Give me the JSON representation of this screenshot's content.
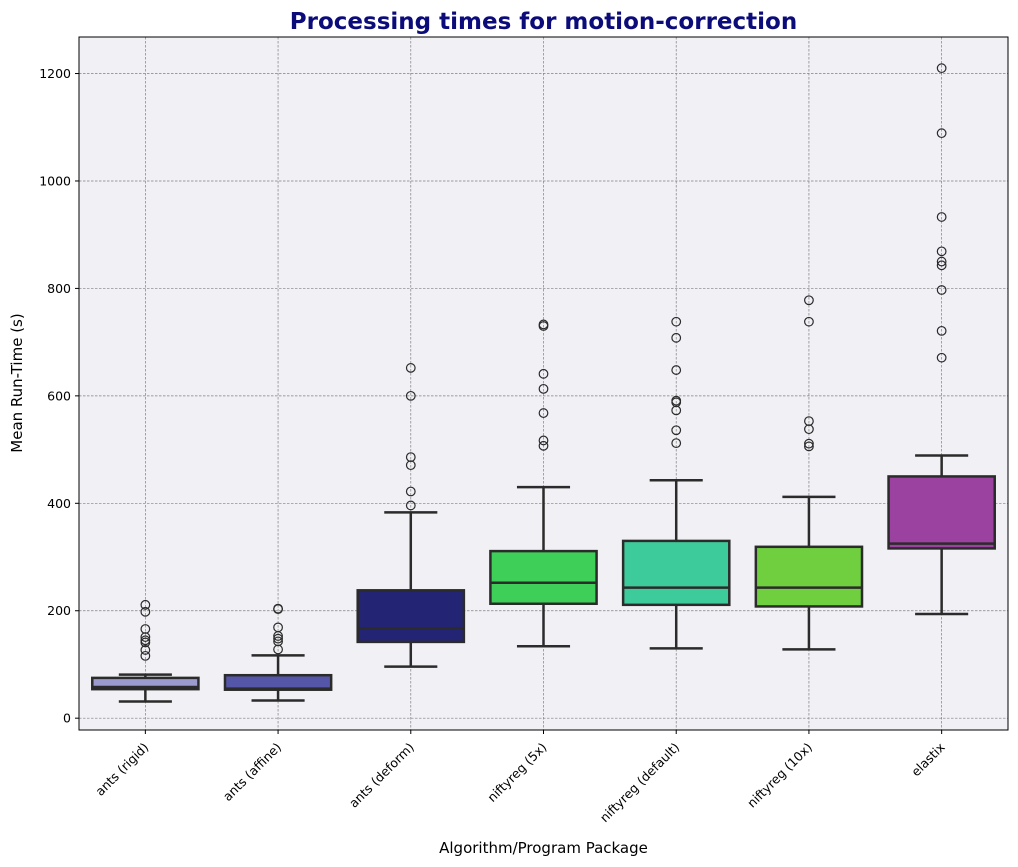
{
  "chart_data": {
    "type": "box",
    "title": "Processing times for motion-correction",
    "xlabel": "Algorithm/Program Package",
    "ylabel": "Mean Run-Time (s)",
    "ylim": [
      -22,
      1268
    ],
    "yticks": [
      0,
      200,
      400,
      600,
      800,
      1000,
      1200
    ],
    "grid": true,
    "colors": {
      "title": "#0b0b7a",
      "plot_background": "#f0f0f5",
      "grid": "#808080",
      "box_edge": "#2b2b2b"
    },
    "categories": [
      "ants (rigid)",
      "ants (affine)",
      "ants (deform)",
      "niftyreg (5x)",
      "niftyreg (default)",
      "niftyreg (10x)",
      "elastix"
    ],
    "boxes": [
      {
        "category": "ants (rigid)",
        "color": "#9b9bd0",
        "whisker_low": 31,
        "q1": 54,
        "median": 58,
        "q3": 75,
        "whisker_high": 81,
        "outliers": [
          211,
          198,
          166,
          151,
          145,
          141,
          127,
          116
        ]
      },
      {
        "category": "ants (affine)",
        "color": "#5656a8",
        "whisker_low": 33,
        "q1": 53,
        "median": 55,
        "q3": 80,
        "whisker_high": 117,
        "outliers": [
          204,
          203,
          169,
          153,
          148,
          143,
          128
        ]
      },
      {
        "category": "ants (deform)",
        "color": "#232473",
        "whisker_low": 96,
        "q1": 142,
        "median": 167,
        "q3": 238,
        "whisker_high": 383,
        "outliers": [
          652,
          600,
          486,
          471,
          422,
          396
        ]
      },
      {
        "category": "niftyreg (5x)",
        "color": "#3ecf58",
        "whisker_low": 134,
        "q1": 213,
        "median": 252,
        "q3": 311,
        "whisker_high": 430,
        "outliers": [
          733,
          730,
          641,
          613,
          568,
          517,
          507
        ]
      },
      {
        "category": "niftyreg (default)",
        "color": "#3ecb9c",
        "whisker_low": 130,
        "q1": 211,
        "median": 243,
        "q3": 330,
        "whisker_high": 443,
        "outliers": [
          738,
          708,
          648,
          591,
          588,
          573,
          536,
          512
        ]
      },
      {
        "category": "niftyreg (10x)",
        "color": "#6fcf3f",
        "whisker_low": 128,
        "q1": 208,
        "median": 243,
        "q3": 319,
        "whisker_high": 412,
        "outliers": [
          778,
          738,
          553,
          538,
          511,
          506
        ]
      },
      {
        "category": "elastix",
        "color": "#9b41a0",
        "whisker_low": 194,
        "q1": 316,
        "median": 325,
        "q3": 450,
        "whisker_high": 489,
        "outliers": [
          1210,
          1089,
          933,
          869,
          850,
          843,
          797,
          721,
          671
        ]
      }
    ]
  }
}
